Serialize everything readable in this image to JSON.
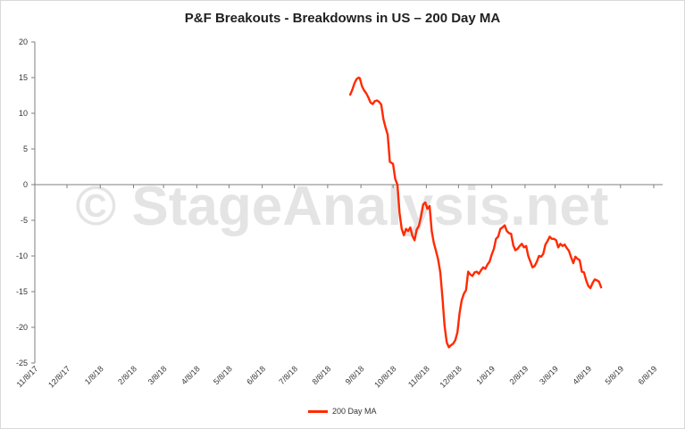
{
  "watermark": "© StageAnalysis.net",
  "colors": {
    "series": "#ff2a00",
    "axis": "#7f7f7f"
  },
  "chart_data": {
    "type": "line",
    "title": "P&F Breakouts - Breakdowns in US – 200 Day MA",
    "xlabel": "",
    "ylabel": "",
    "ylim": [
      -25,
      20
    ],
    "yticks": [
      20,
      15,
      10,
      5,
      0,
      -5,
      -10,
      -15,
      -20,
      -25
    ],
    "xtick_labels": [
      "11/8/17",
      "12/8/17",
      "1/8/18",
      "2/8/18",
      "3/8/18",
      "4/8/18",
      "5/8/18",
      "6/8/18",
      "7/8/18",
      "8/8/18",
      "9/8/18",
      "10/8/18",
      "11/8/18",
      "12/8/18",
      "1/8/19",
      "2/8/19",
      "3/8/19",
      "4/8/19",
      "5/8/19",
      "6/8/19"
    ],
    "grid": false,
    "legend": "bottom",
    "series": [
      {
        "name": "200 Day MA",
        "color": "#ff2a00",
        "points": [
          [
            "8/29/18",
            12.6
          ],
          [
            "8/31/18",
            13.3
          ],
          [
            "9/2/18",
            14.2
          ],
          [
            "9/4/18",
            14.8
          ],
          [
            "9/6/18",
            15.0
          ],
          [
            "9/7/18",
            14.9
          ],
          [
            "9/9/18",
            13.8
          ],
          [
            "9/11/18",
            13.2
          ],
          [
            "9/13/18",
            12.8
          ],
          [
            "9/15/18",
            12.2
          ],
          [
            "9/17/18",
            11.5
          ],
          [
            "9/19/18",
            11.3
          ],
          [
            "9/21/18",
            11.7
          ],
          [
            "9/23/18",
            11.8
          ],
          [
            "9/25/18",
            11.6
          ],
          [
            "9/27/18",
            11.2
          ],
          [
            "9/29/18",
            9.2
          ],
          [
            "10/1/18",
            8.0
          ],
          [
            "10/3/18",
            7.0
          ],
          [
            "10/5/18",
            3.2
          ],
          [
            "10/7/18",
            3.0
          ],
          [
            "10/8/18",
            2.9
          ],
          [
            "10/10/18",
            0.8
          ],
          [
            "10/12/18",
            0.0
          ],
          [
            "10/14/18",
            -4.0
          ],
          [
            "10/16/18",
            -6.2
          ],
          [
            "10/18/18",
            -7.1
          ],
          [
            "10/20/18",
            -6.2
          ],
          [
            "10/22/18",
            -6.5
          ],
          [
            "10/24/18",
            -6.0
          ],
          [
            "10/26/18",
            -7.2
          ],
          [
            "10/28/18",
            -7.8
          ],
          [
            "10/30/18",
            -6.3
          ],
          [
            "11/1/18",
            -5.8
          ],
          [
            "11/3/18",
            -4.5
          ],
          [
            "11/5/18",
            -2.8
          ],
          [
            "11/7/18",
            -2.5
          ],
          [
            "11/9/18",
            -3.4
          ],
          [
            "11/11/18",
            -3.0
          ],
          [
            "11/13/18",
            -6.5
          ],
          [
            "11/15/18",
            -8.2
          ],
          [
            "11/17/18",
            -9.3
          ],
          [
            "11/19/18",
            -10.5
          ],
          [
            "11/21/18",
            -12.3
          ],
          [
            "11/23/18",
            -15.8
          ],
          [
            "11/25/18",
            -19.8
          ],
          [
            "11/27/18",
            -22.1
          ],
          [
            "11/29/18",
            -22.8
          ],
          [
            "12/1/18",
            -22.5
          ],
          [
            "12/3/18",
            -22.3
          ],
          [
            "12/5/18",
            -21.8
          ],
          [
            "12/7/18",
            -20.7
          ],
          [
            "12/9/18",
            -18.0
          ],
          [
            "12/11/18",
            -16.2
          ],
          [
            "12/13/18",
            -15.3
          ],
          [
            "12/15/18",
            -14.8
          ],
          [
            "12/17/18",
            -12.2
          ],
          [
            "12/19/18",
            -12.6
          ],
          [
            "12/21/18",
            -12.8
          ],
          [
            "12/23/18",
            -12.3
          ],
          [
            "12/25/18",
            -12.2
          ],
          [
            "12/27/18",
            -12.5
          ],
          [
            "12/29/18",
            -12.0
          ],
          [
            "12/31/18",
            -11.6
          ],
          [
            "1/2/19",
            -11.8
          ],
          [
            "1/4/19",
            -11.2
          ],
          [
            "1/6/19",
            -10.8
          ],
          [
            "1/8/19",
            -9.8
          ],
          [
            "1/10/19",
            -9.0
          ],
          [
            "1/12/19",
            -7.6
          ],
          [
            "1/14/19",
            -7.3
          ],
          [
            "1/16/19",
            -6.2
          ],
          [
            "1/18/19",
            -6.0
          ],
          [
            "1/20/19",
            -5.7
          ],
          [
            "1/22/19",
            -6.5
          ],
          [
            "1/24/19",
            -6.8
          ],
          [
            "1/26/19",
            -6.9
          ],
          [
            "1/28/19",
            -8.5
          ],
          [
            "1/30/19",
            -9.2
          ],
          [
            "2/1/19",
            -9.0
          ],
          [
            "2/3/19",
            -8.6
          ],
          [
            "2/5/19",
            -8.3
          ],
          [
            "2/7/19",
            -8.8
          ],
          [
            "2/9/19",
            -8.6
          ],
          [
            "2/11/19",
            -10.0
          ],
          [
            "2/13/19",
            -10.8
          ],
          [
            "2/15/19",
            -11.6
          ],
          [
            "2/17/19",
            -11.4
          ],
          [
            "2/19/19",
            -10.8
          ],
          [
            "2/21/19",
            -10.0
          ],
          [
            "2/23/19",
            -10.1
          ],
          [
            "2/25/19",
            -9.7
          ],
          [
            "2/27/19",
            -8.4
          ],
          [
            "3/1/19",
            -7.9
          ],
          [
            "3/3/19",
            -7.3
          ],
          [
            "3/5/19",
            -7.6
          ],
          [
            "3/7/19",
            -7.6
          ],
          [
            "3/9/19",
            -7.8
          ],
          [
            "3/11/19",
            -8.8
          ],
          [
            "3/13/19",
            -8.3
          ],
          [
            "3/15/19",
            -8.6
          ],
          [
            "3/17/19",
            -8.4
          ],
          [
            "3/19/19",
            -8.9
          ],
          [
            "3/21/19",
            -9.3
          ],
          [
            "3/23/19",
            -10.2
          ],
          [
            "3/25/19",
            -11.0
          ],
          [
            "3/27/19",
            -10.1
          ],
          [
            "3/29/19",
            -10.4
          ],
          [
            "3/31/19",
            -10.6
          ],
          [
            "4/2/19",
            -12.2
          ],
          [
            "4/4/19",
            -12.3
          ],
          [
            "4/6/19",
            -13.4
          ],
          [
            "4/8/19",
            -14.2
          ],
          [
            "4/10/19",
            -14.5
          ],
          [
            "4/12/19",
            -13.8
          ],
          [
            "4/14/19",
            -13.3
          ],
          [
            "4/16/19",
            -13.4
          ],
          [
            "4/18/19",
            -13.6
          ],
          [
            "4/20/19",
            -14.4
          ]
        ]
      }
    ]
  }
}
